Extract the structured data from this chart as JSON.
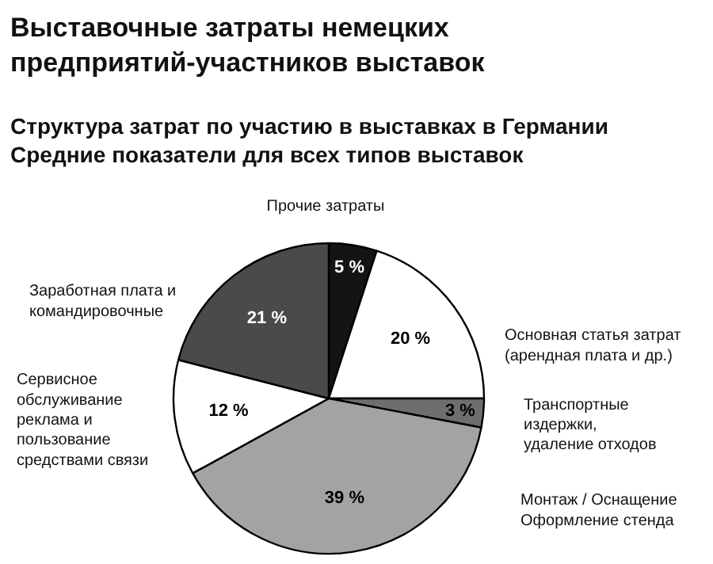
{
  "chart_data": {
    "type": "pie",
    "title": "Выставочные затраты немецких\nпредприятий-участников выставок",
    "subtitle": "Структура затрат по участию в выставках в Германии\nСредние показатели для всех типов выставок",
    "categories": [
      "Прочие затраты",
      "Основная статья затрат\n(арендная плата и др.)",
      "Транспортные\nиздержки,\nудаление отходов",
      "Монтаж / Оснащение\nОформление стенда",
      "Сервисное\nобслуживание\nреклама и\nпользование\nсредствами связи",
      "Заработная плата и\nкомандировочные"
    ],
    "values": [
      5,
      20,
      3,
      39,
      12,
      21
    ],
    "value_labels": [
      "5 %",
      "20 %",
      "3 %",
      "39 %",
      "12 %",
      "21 %"
    ],
    "colors": [
      "#141414",
      "#ffffff",
      "#6e6e6e",
      "#a3a3a3",
      "#ffffff",
      "#4a4a4a"
    ]
  }
}
